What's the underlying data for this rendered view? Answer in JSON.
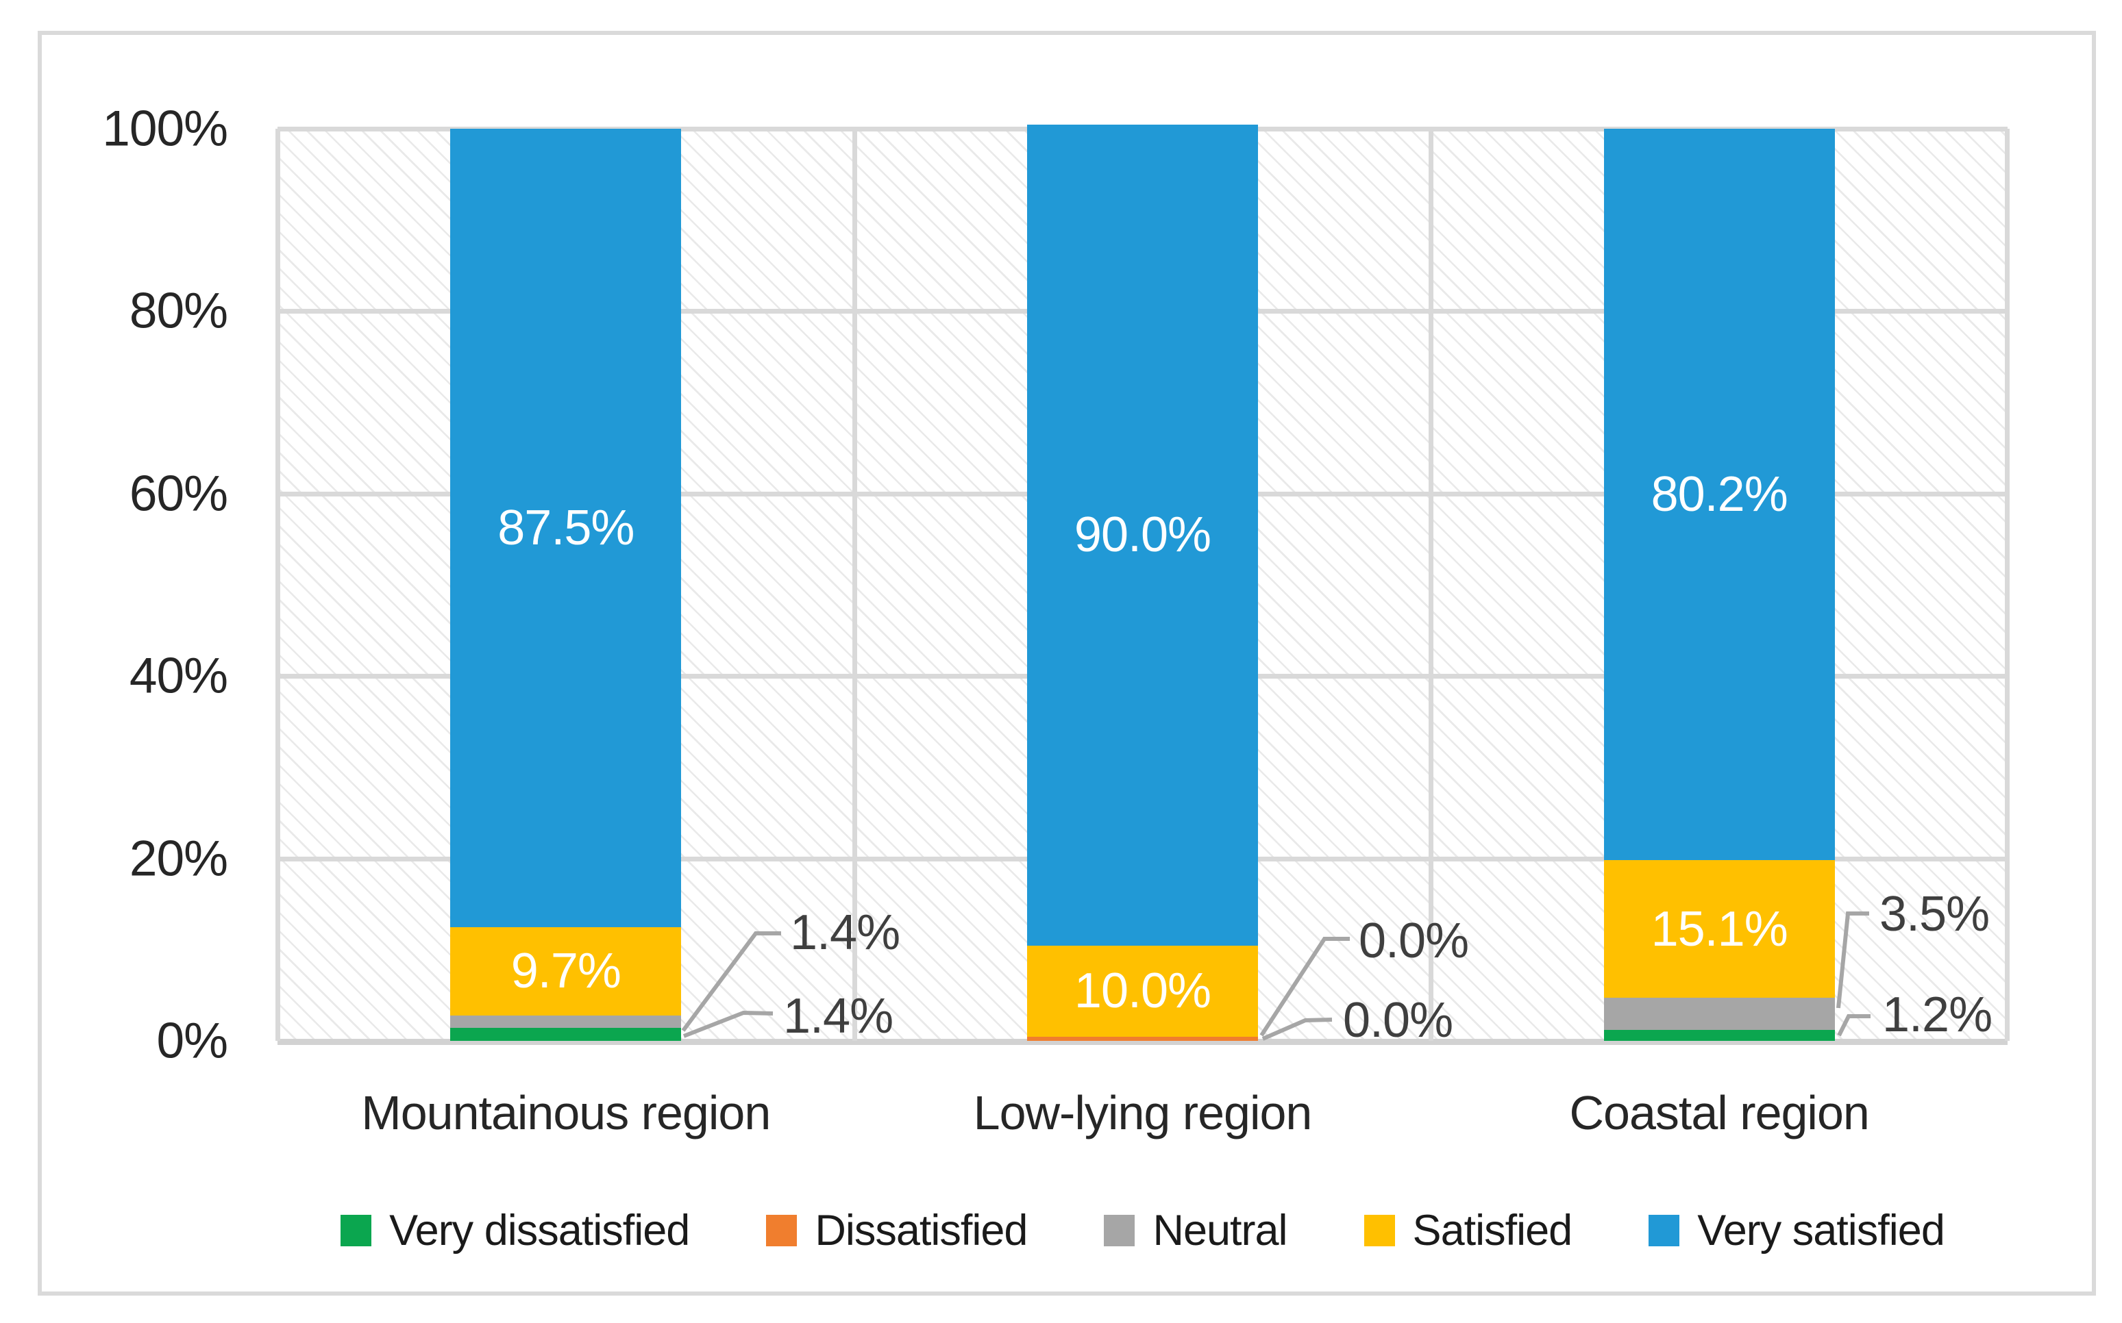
{
  "chart_data": {
    "type": "bar",
    "stacked": true,
    "stack_unit": "percent",
    "title": "",
    "categories": [
      "Mountainous region",
      "Low-lying region",
      "Coastal region"
    ],
    "series": [
      {
        "name": "Very dissatisfied",
        "color": "#0ba64f",
        "values": [
          1.4,
          0.0,
          1.2
        ]
      },
      {
        "name": "Dissatisfied",
        "color": "#f07e2e",
        "values": [
          0.0,
          0.0,
          0.0
        ]
      },
      {
        "name": "Neutral",
        "color": "#a6a6a6",
        "values": [
          1.4,
          0.0,
          3.5
        ]
      },
      {
        "name": "Satisfied",
        "color": "#ffc000",
        "values": [
          9.7,
          10.0,
          15.1
        ]
      },
      {
        "name": "Very satisfied",
        "color": "#2199d6",
        "values": [
          87.5,
          90.0,
          80.2
        ]
      }
    ],
    "y_axis": {
      "min": 0,
      "max": 100,
      "ticks": [
        "100%",
        "80%",
        "60%",
        "40%",
        "20%",
        "0%"
      ],
      "grid": true
    },
    "legend": {
      "position": "bottom",
      "entries": [
        "Very dissatisfied",
        "Dissatisfied",
        "Neutral",
        "Satisfied",
        "Very satisfied"
      ]
    },
    "data_labels": {
      "in_bar": [
        {
          "category": 0,
          "series": "Satisfied",
          "text": "9.7%"
        },
        {
          "category": 0,
          "series": "Very satisfied",
          "text": "87.5%"
        },
        {
          "category": 1,
          "series": "Satisfied",
          "text": "10.0%"
        },
        {
          "category": 1,
          "series": "Very satisfied",
          "text": "90.0%"
        },
        {
          "category": 2,
          "series": "Satisfied",
          "text": "15.1%"
        },
        {
          "category": 2,
          "series": "Very satisfied",
          "text": "80.2%"
        }
      ],
      "callouts": [
        {
          "category": 0,
          "series": "Neutral",
          "text": "1.4%"
        },
        {
          "category": 0,
          "series": "Very dissatisfied",
          "text": "1.4%"
        },
        {
          "category": 1,
          "series": "Dissatisfied",
          "text": "0.0%"
        },
        {
          "category": 1,
          "series": "Very dissatisfied",
          "text": "0.0%"
        },
        {
          "category": 2,
          "series": "Neutral",
          "text": "3.5%"
        },
        {
          "category": 2,
          "series": "Very dissatisfied",
          "text": "1.2%"
        }
      ]
    },
    "colors": {
      "gridline": "#d9d9d9",
      "axis_line": "#d2d2d2",
      "callout_text": "#3f3f3f",
      "axis_text": "#262626",
      "in_bar_text": "#ffffff",
      "leader_line": "#a6a6a6",
      "frame": "#dadada"
    }
  }
}
